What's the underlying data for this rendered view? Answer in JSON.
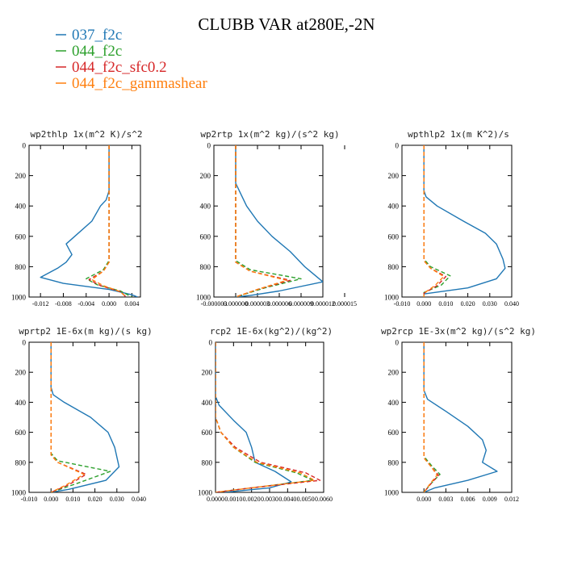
{
  "title": "CLUBB VAR at280E,-2N",
  "legend": {
    "placement": "top-left",
    "entries": [
      {
        "name": "037_f2c",
        "color": "#1f77b4",
        "dash": "solid"
      },
      {
        "name": "044_f2c",
        "color": "#2ca02c",
        "dash": "dashed"
      },
      {
        "name": "044_f2c_sfc0.2",
        "color": "#d62728",
        "dash": "dashed"
      },
      {
        "name": "044_f2c_gammashear",
        "color": "#ff7f0e",
        "dash": "dashed"
      }
    ]
  },
  "chart_data": [
    {
      "type": "line",
      "title": "wp2thlp  1x(m^2 K)/s^2",
      "xlim": [
        -0.014,
        0.0055
      ],
      "ylim": [
        0,
        1000
      ],
      "y_inverted": true,
      "xticks": [
        -0.012,
        -0.008,
        -0.004,
        0.0,
        0.004
      ],
      "xtick_labels": [
        "-0.012",
        "-0.008",
        "-0.004",
        "0.000",
        "0.004"
      ],
      "yticks": [
        0,
        200,
        400,
        600,
        800,
        1000
      ],
      "series": [
        {
          "name": "037_f2c",
          "points": [
            [
              0,
              0
            ],
            [
              0,
              300
            ],
            [
              -0.0005,
              360
            ],
            [
              -0.0015,
              400
            ],
            [
              -0.003,
              500
            ],
            [
              -0.006,
              600
            ],
            [
              -0.0075,
              650
            ],
            [
              -0.0065,
              720
            ],
            [
              -0.0075,
              770
            ],
            [
              -0.009,
              810
            ],
            [
              -0.012,
              870
            ],
            [
              -0.008,
              910
            ],
            [
              0.0,
              950
            ],
            [
              0.004,
              985
            ],
            [
              0.005,
              1000
            ]
          ]
        },
        {
          "name": "044_f2c",
          "points": [
            [
              0,
              0
            ],
            [
              0,
              760
            ],
            [
              -0.001,
              820
            ],
            [
              -0.004,
              880
            ],
            [
              -0.002,
              920
            ],
            [
              0.002,
              960
            ],
            [
              0.004,
              1000
            ]
          ]
        },
        {
          "name": "044_f2c_sfc0.2",
          "points": [
            [
              0,
              0
            ],
            [
              0,
              770
            ],
            [
              -0.001,
              830
            ],
            [
              -0.0035,
              885
            ],
            [
              -0.0015,
              925
            ],
            [
              0.002,
              965
            ],
            [
              0.003,
              1000
            ]
          ]
        },
        {
          "name": "044_f2c_gammashear",
          "points": [
            [
              0,
              0
            ],
            [
              0,
              770
            ],
            [
              -0.001,
              830
            ],
            [
              -0.003,
              885
            ],
            [
              -0.001,
              925
            ],
            [
              0.002,
              965
            ],
            [
              0.003,
              1000
            ]
          ]
        }
      ]
    },
    {
      "type": "line",
      "title": "wp2rtp  1x(m^2 kg)/(s^2 kg)",
      "xlim": [
        -3e-06,
        1.2e-05
      ],
      "ylim": [
        0,
        1000
      ],
      "y_inverted": true,
      "xticks": [
        -3e-06,
        0.0,
        3e-06,
        6e-06,
        9e-06,
        1.2e-05,
        1.5e-05
      ],
      "xtick_labels": [
        "-0.000003",
        "0.000000",
        "0.000003",
        "0.000006",
        "0.000009",
        "0.000012",
        "0.000015"
      ],
      "yticks": [
        0,
        200,
        400,
        600,
        800,
        1000
      ],
      "series": [
        {
          "name": "037_f2c",
          "points": [
            [
              0,
              0
            ],
            [
              0,
              250
            ],
            [
              5e-07,
              300
            ],
            [
              1.5e-06,
              400
            ],
            [
              3e-06,
              500
            ],
            [
              5e-06,
              600
            ],
            [
              7.5e-06,
              700
            ],
            [
              9.5e-06,
              800
            ],
            [
              1.2e-05,
              900
            ],
            [
              6e-06,
              960
            ],
            [
              2e-06,
              990
            ],
            [
              0,
              1000
            ]
          ]
        },
        {
          "name": "044_f2c",
          "points": [
            [
              0,
              0
            ],
            [
              0,
              760
            ],
            [
              2e-06,
              820
            ],
            [
              9e-06,
              880
            ],
            [
              4e-06,
              940
            ],
            [
              0,
              1000
            ]
          ]
        },
        {
          "name": "044_f2c_sfc0.2",
          "points": [
            [
              0,
              0
            ],
            [
              0,
              770
            ],
            [
              2e-06,
              830
            ],
            [
              7.5e-06,
              890
            ],
            [
              3e-06,
              950
            ],
            [
              0,
              1000
            ]
          ]
        },
        {
          "name": "044_f2c_gammashear",
          "points": [
            [
              0,
              0
            ],
            [
              0,
              770
            ],
            [
              2e-06,
              830
            ],
            [
              7e-06,
              890
            ],
            [
              3e-06,
              950
            ],
            [
              0,
              1000
            ]
          ]
        }
      ]
    },
    {
      "type": "line",
      "title": "wpthlp2  1x(m K^2)/s",
      "xlim": [
        -0.01,
        0.04
      ],
      "ylim": [
        0,
        1000
      ],
      "y_inverted": true,
      "xticks": [
        -0.01,
        0.0,
        0.01,
        0.02,
        0.03,
        0.04
      ],
      "xtick_labels": [
        "-0.010",
        "0.000",
        "0.010",
        "0.020",
        "0.030",
        "0.040"
      ],
      "yticks": [
        0,
        200,
        400,
        600,
        800,
        1000
      ],
      "series": [
        {
          "name": "037_f2c",
          "points": [
            [
              0,
              0
            ],
            [
              0,
              300
            ],
            [
              0.001,
              340
            ],
            [
              0.006,
              400
            ],
            [
              0.018,
              500
            ],
            [
              0.028,
              580
            ],
            [
              0.033,
              650
            ],
            [
              0.036,
              750
            ],
            [
              0.037,
              810
            ],
            [
              0.033,
              880
            ],
            [
              0.02,
              940
            ],
            [
              0,
              980
            ],
            [
              0,
              1000
            ]
          ]
        },
        {
          "name": "044_f2c",
          "points": [
            [
              0,
              0
            ],
            [
              0,
              750
            ],
            [
              0.003,
              800
            ],
            [
              0.012,
              860
            ],
            [
              0.008,
              920
            ],
            [
              0,
              970
            ],
            [
              0,
              1000
            ]
          ]
        },
        {
          "name": "044_f2c_sfc0.2",
          "points": [
            [
              0,
              0
            ],
            [
              0,
              760
            ],
            [
              0.003,
              810
            ],
            [
              0.01,
              865
            ],
            [
              0.006,
              925
            ],
            [
              0,
              975
            ],
            [
              0,
              1000
            ]
          ]
        },
        {
          "name": "044_f2c_gammashear",
          "points": [
            [
              0,
              0
            ],
            [
              0,
              760
            ],
            [
              0.003,
              810
            ],
            [
              0.009,
              865
            ],
            [
              0.005,
              925
            ],
            [
              0,
              975
            ],
            [
              0,
              1000
            ]
          ]
        }
      ]
    },
    {
      "type": "line",
      "title": "wprtp2  1E-6x(m kg)/(s kg)",
      "xlim": [
        -0.01,
        0.04
      ],
      "ylim": [
        0,
        1000
      ],
      "y_inverted": true,
      "xticks": [
        -0.01,
        0.0,
        0.01,
        0.02,
        0.03,
        0.04
      ],
      "xtick_labels": [
        "-0.010",
        "0.000",
        "0.010",
        "0.020",
        "0.030",
        "0.040"
      ],
      "yticks": [
        0,
        200,
        400,
        600,
        800,
        1000
      ],
      "series": [
        {
          "name": "037_f2c",
          "points": [
            [
              0,
              0
            ],
            [
              0,
              300
            ],
            [
              0.001,
              350
            ],
            [
              0.006,
              400
            ],
            [
              0.018,
              500
            ],
            [
              0.026,
              600
            ],
            [
              0.029,
              700
            ],
            [
              0.031,
              830
            ],
            [
              0.025,
              920
            ],
            [
              0.008,
              980
            ],
            [
              0,
              1000
            ]
          ]
        },
        {
          "name": "044_f2c",
          "points": [
            [
              0,
              0
            ],
            [
              0,
              740
            ],
            [
              0.003,
              790
            ],
            [
              0.027,
              860
            ],
            [
              0.012,
              940
            ],
            [
              0,
              1000
            ]
          ]
        },
        {
          "name": "044_f2c_sfc0.2",
          "points": [
            [
              0,
              0
            ],
            [
              0,
              750
            ],
            [
              0.003,
              800
            ],
            [
              0.016,
              880
            ],
            [
              0.008,
              950
            ],
            [
              0,
              1000
            ]
          ]
        },
        {
          "name": "044_f2c_gammashear",
          "points": [
            [
              0,
              0
            ],
            [
              0,
              750
            ],
            [
              0.003,
              800
            ],
            [
              0.015,
              880
            ],
            [
              0.007,
              950
            ],
            [
              0,
              1000
            ]
          ]
        }
      ]
    },
    {
      "type": "line",
      "title": "rcp2  1E-6x(kg^2)/(kg^2)",
      "xlim": [
        0,
        0.006
      ],
      "ylim": [
        0,
        1000
      ],
      "y_inverted": true,
      "xticks": [
        0.0,
        0.001,
        0.002,
        0.003,
        0.004,
        0.005,
        0.006
      ],
      "xtick_labels": [
        "0.0000",
        "0.0010",
        "0.0020",
        "0.0030",
        "0.0040",
        "0.0050",
        "0.0060"
      ],
      "yticks": [
        0,
        200,
        400,
        600,
        800,
        1000
      ],
      "series": [
        {
          "name": "037_f2c",
          "points": [
            [
              0,
              0
            ],
            [
              0,
              360
            ],
            [
              0.0002,
              420
            ],
            [
              0.001,
              520
            ],
            [
              0.0017,
              600
            ],
            [
              0.002,
              700
            ],
            [
              0.0022,
              800
            ],
            [
              0.0033,
              860
            ],
            [
              0.0042,
              930
            ],
            [
              0.003,
              970
            ],
            [
              0.0005,
              1000
            ]
          ]
        },
        {
          "name": "044_f2c",
          "points": [
            [
              0,
              0
            ],
            [
              0,
              500
            ],
            [
              0.0003,
              600
            ],
            [
              0.001,
              700
            ],
            [
              0.0022,
              800
            ],
            [
              0.0045,
              870
            ],
            [
              0.0054,
              920
            ],
            [
              0.002,
              970
            ],
            [
              0,
              1000
            ]
          ]
        },
        {
          "name": "044_f2c_sfc0.2",
          "points": [
            [
              0,
              0
            ],
            [
              0,
              500
            ],
            [
              0.0003,
              600
            ],
            [
              0.0011,
              700
            ],
            [
              0.0025,
              800
            ],
            [
              0.005,
              870
            ],
            [
              0.0058,
              920
            ],
            [
              0.002,
              970
            ],
            [
              0,
              1000
            ]
          ]
        },
        {
          "name": "044_f2c_gammashear",
          "points": [
            [
              0,
              0
            ],
            [
              0,
              500
            ],
            [
              0.0003,
              600
            ],
            [
              0.001,
              700
            ],
            [
              0.0023,
              800
            ],
            [
              0.0047,
              870
            ],
            [
              0.0055,
              920
            ],
            [
              0.002,
              970
            ],
            [
              0,
              1000
            ]
          ]
        }
      ]
    },
    {
      "type": "line",
      "title": "wp2rcp  1E-3x(m^2 kg)/(s^2 kg)",
      "xlim": [
        -0.003,
        0.012
      ],
      "ylim": [
        0,
        1000
      ],
      "y_inverted": true,
      "xticks": [
        0.0,
        0.003,
        0.006,
        0.009,
        0.012
      ],
      "xtick_labels": [
        "0.000",
        "0.003",
        "0.006",
        "0.009",
        "0.012"
      ],
      "yticks": [
        0,
        200,
        400,
        600,
        800,
        1000
      ],
      "series": [
        {
          "name": "037_f2c",
          "points": [
            [
              0,
              0
            ],
            [
              0,
              320
            ],
            [
              0.0005,
              380
            ],
            [
              0.003,
              460
            ],
            [
              0.006,
              560
            ],
            [
              0.008,
              650
            ],
            [
              0.0085,
              720
            ],
            [
              0.008,
              800
            ],
            [
              0.01,
              860
            ],
            [
              0.006,
              920
            ],
            [
              0.0015,
              970
            ],
            [
              0,
              1000
            ]
          ]
        },
        {
          "name": "044_f2c",
          "points": [
            [
              0,
              0
            ],
            [
              0,
              760
            ],
            [
              0.001,
              820
            ],
            [
              0.0022,
              880
            ],
            [
              0.001,
              940
            ],
            [
              0,
              1000
            ]
          ]
        },
        {
          "name": "044_f2c_sfc0.2",
          "points": [
            [
              0,
              0
            ],
            [
              0,
              770
            ],
            [
              0.001,
              830
            ],
            [
              0.002,
              885
            ],
            [
              0.0009,
              945
            ],
            [
              0,
              1000
            ]
          ]
        },
        {
          "name": "044_f2c_gammashear",
          "points": [
            [
              0,
              0
            ],
            [
              0,
              770
            ],
            [
              0.001,
              830
            ],
            [
              0.0018,
              885
            ],
            [
              0.0008,
              945
            ],
            [
              0,
              1000
            ]
          ]
        }
      ]
    }
  ]
}
